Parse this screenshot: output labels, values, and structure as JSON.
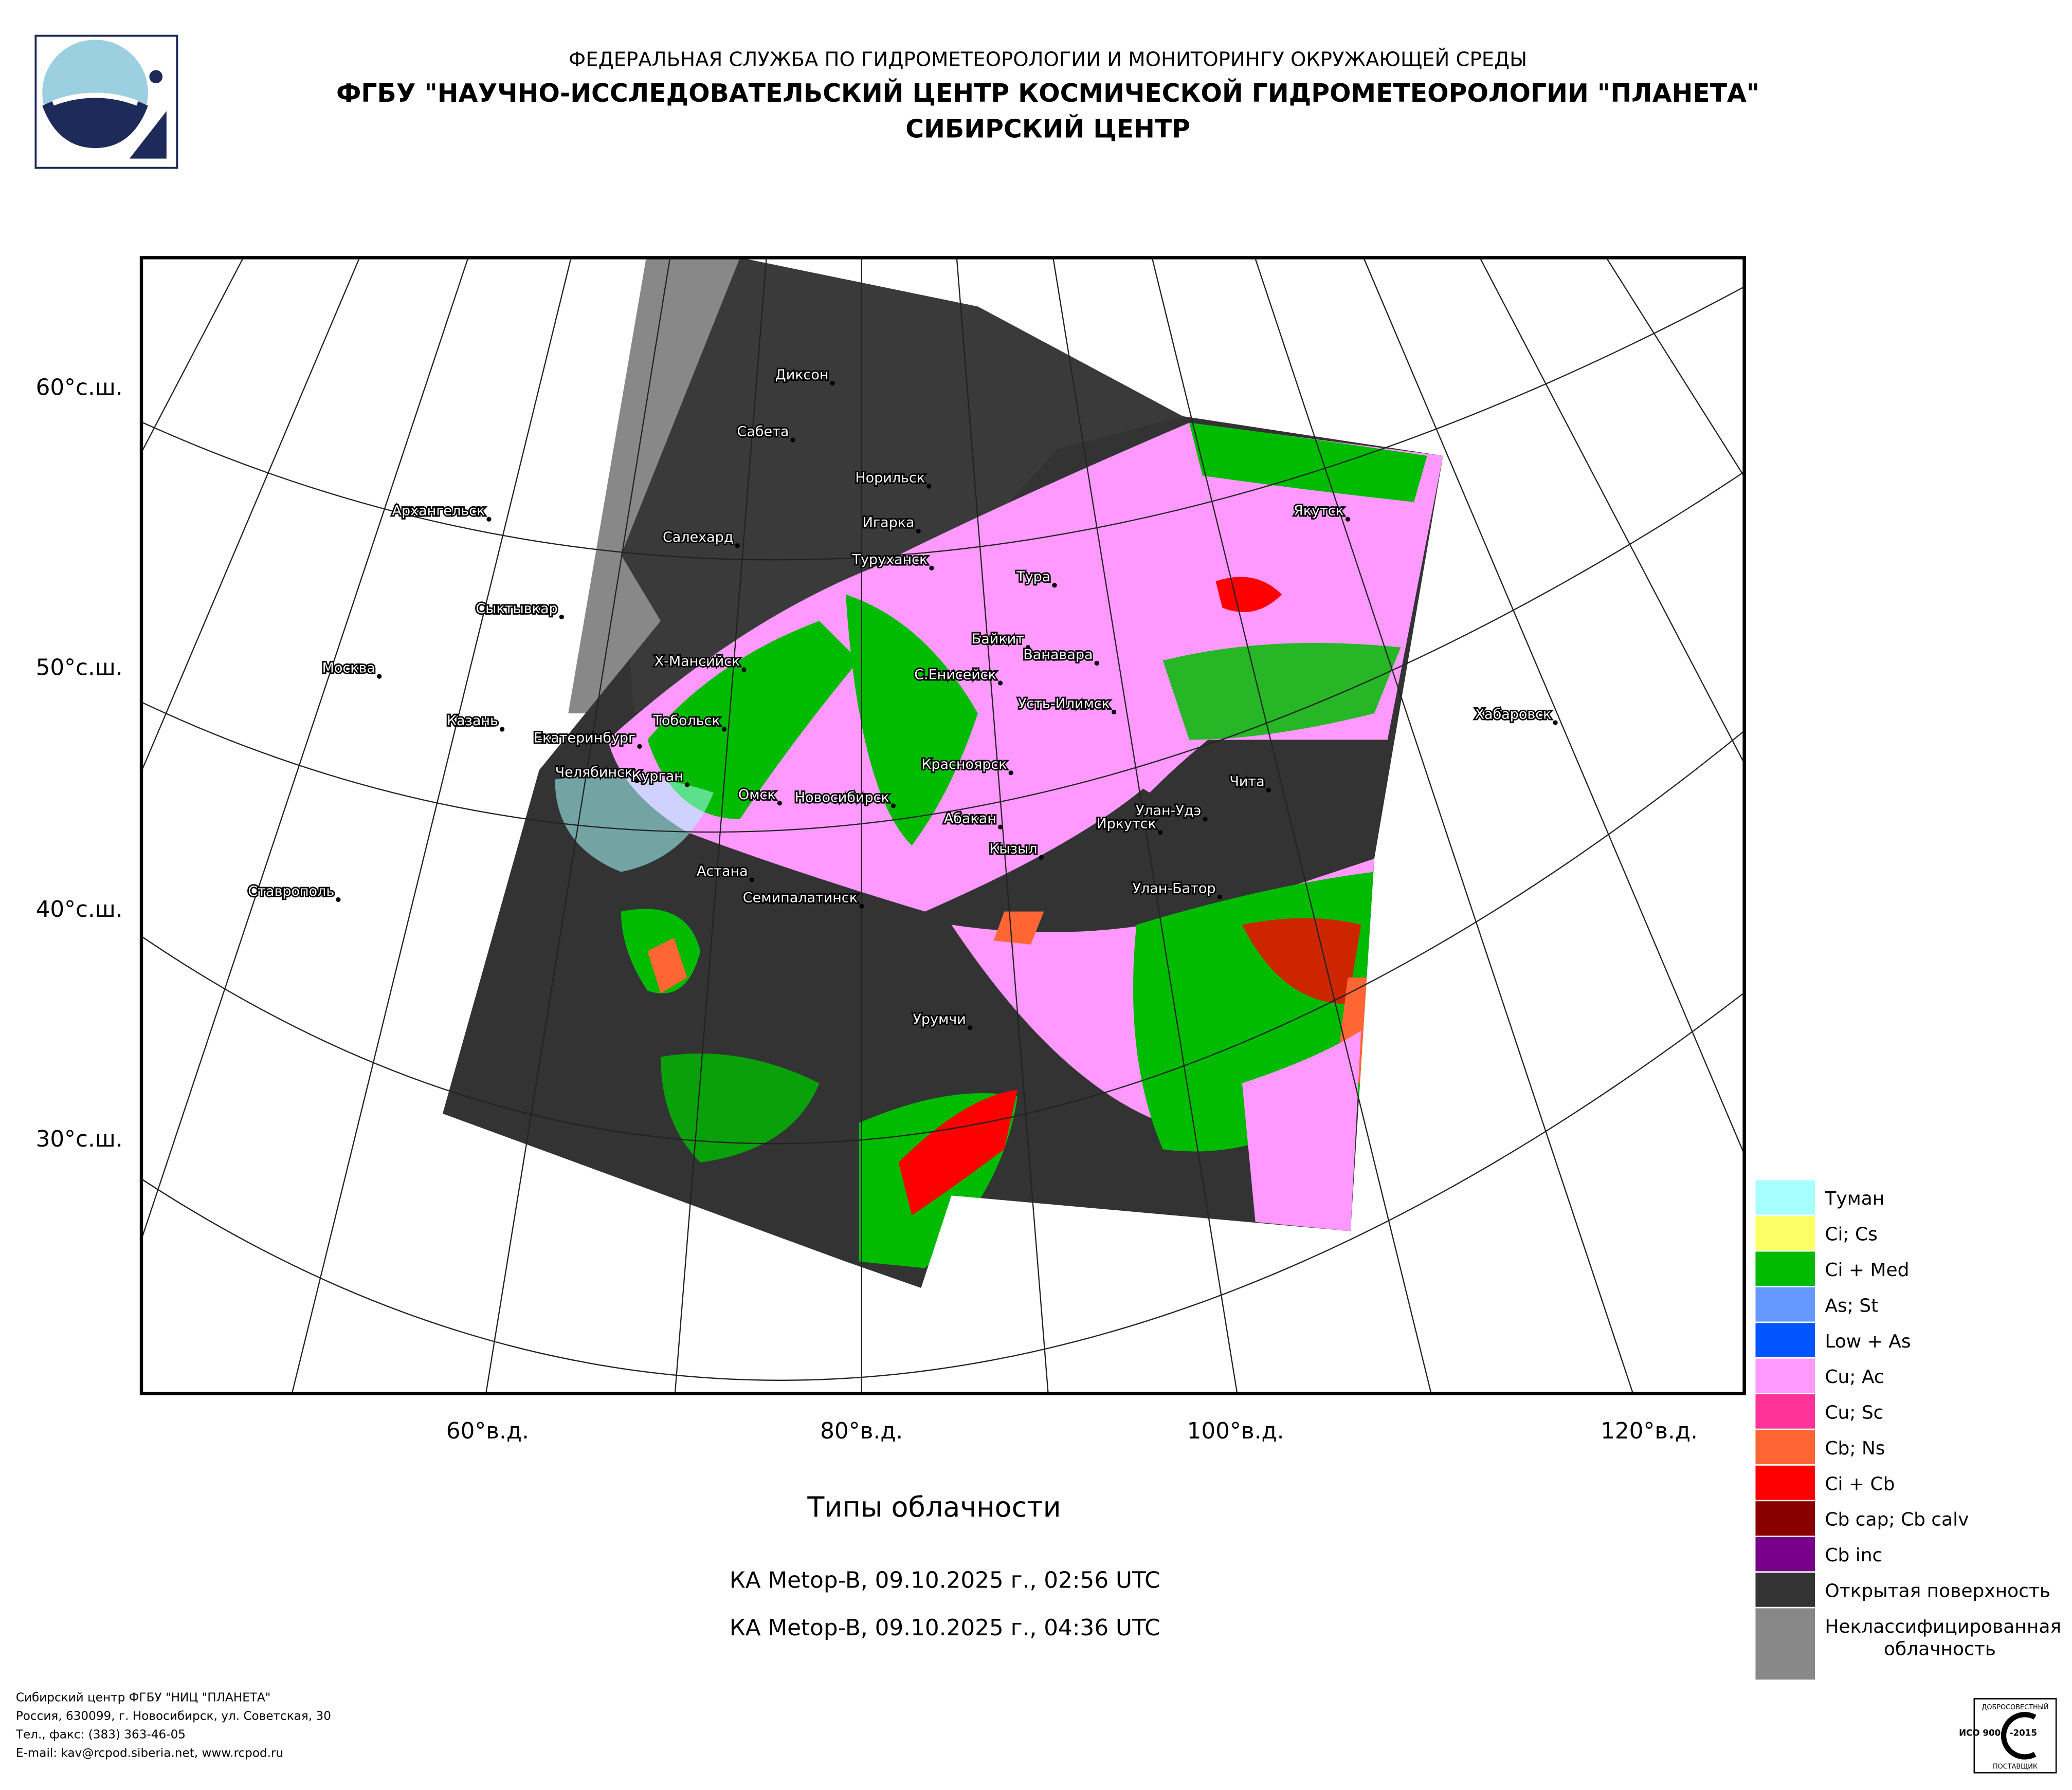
{
  "header": {
    "lines": [
      "ФЕДЕРАЛЬНАЯ СЛУЖБА ПО ГИДРОМЕТЕОРОЛОГИИ И МОНИТОРИНГУ ОКРУЖАЮЩЕЙ СРЕДЫ",
      "ФГБУ \"НАУЧНО-ИССЛЕДОВАТЕЛЬСКИЙ ЦЕНТР КОСМИЧЕСКОЙ ГИДРОМЕТЕОРОЛОГИИ \"ПЛАНЕТА\"",
      "СИБИРСКИЙ ЦЕНТР"
    ]
  },
  "map": {
    "cities": [
      "Диксон",
      "Сабета",
      "Норильск",
      "Игарка",
      "Салехард",
      "Туруханск",
      "Тура",
      "Якутск",
      "Архангельск",
      "Сыктывкар",
      "Москва",
      "Казань",
      "Екатеринбург",
      "Тобольск",
      "Х-Мансийск",
      "Байкит",
      "Ванавара",
      "С.Енисейск",
      "Усть-Илимск",
      "Хабаровск",
      "Челябинск",
      "Курган",
      "Омск",
      "Новосибирск",
      "Красноярск",
      "Чита",
      "Абакан",
      "Улан-Удэ",
      "Иркутск",
      "Астана",
      "Кызыл",
      "Семипалатинск",
      "Улан-Батор",
      "Ставрополь",
      "Урумчи"
    ],
    "lat_labels": [
      "60°с.ш.",
      "50°с.ш.",
      "40°с.ш.",
      "30°с.ш."
    ],
    "lon_labels": [
      "60°в.д.",
      "80°в.д.",
      "100°в.д.",
      "120°в.д."
    ]
  },
  "legend": [
    {
      "label": "Туман",
      "color": "#a8ffff"
    },
    {
      "label": "Ci; Cs",
      "color": "#ffff66"
    },
    {
      "label": "Ci + Med",
      "color": "#00bb00"
    },
    {
      "label": "As; St",
      "color": "#6699ff"
    },
    {
      "label": "Low + As",
      "color": "#0055ff"
    },
    {
      "label": "Cu; Ac",
      "color": "#ff99ff"
    },
    {
      "label": "Cu; Sc",
      "color": "#ff3399"
    },
    {
      "label": "Cb; Ns",
      "color": "#ff6633"
    },
    {
      "label": "Ci + Cb",
      "color": "#ff0000"
    },
    {
      "label": "Cb cap; Cb calv",
      "color": "#880000"
    },
    {
      "label": "Cb inc",
      "color": "#770088"
    },
    {
      "label": "Открытая поверхность",
      "color": "#333333"
    },
    {
      "label": "Неклассифицированная облачность",
      "color": "#888888"
    }
  ],
  "caption": {
    "title": "Типы облачности",
    "passes": [
      "КА Metop-B, 09.10.2025 г., 02:56 UTC",
      "КА Metop-B, 09.10.2025 г., 04:36 UTC"
    ]
  },
  "footer": {
    "lines": [
      "Сибирский центр ФГБУ \"НИЦ \"ПЛАНЕТА\"",
      "Россия, 630099, г. Новосибирск, ул. Советская, 30",
      "Тел., факс: (383) 363-46-05",
      "E-mail: kav@rcpod.siberia.net, www.rcpod.ru"
    ]
  },
  "certificate": {
    "top": "ДОБРОСОВЕСТНЫЙ",
    "middle": "ИСО 9001 -2015",
    "bottom": "ПОСТАВЩИК"
  }
}
